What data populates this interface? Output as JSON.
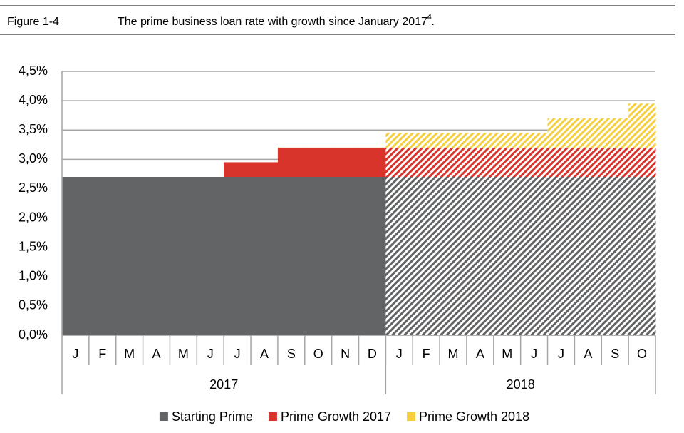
{
  "figure_label": "Figure 1-4",
  "chart_data": {
    "type": "stacked-bar",
    "title": "The prime business loan rate with growth since January 2017",
    "title_superscript": "4",
    "title_end": ".",
    "categories": [
      "J",
      "F",
      "M",
      "A",
      "M",
      "J",
      "J",
      "A",
      "S",
      "O",
      "N",
      "D",
      "J",
      "F",
      "M",
      "A",
      "M",
      "J",
      "J",
      "A",
      "S",
      "O"
    ],
    "groups": [
      {
        "label": "2017",
        "count": 12,
        "hatched": false
      },
      {
        "label": "2018",
        "count": 10,
        "hatched": true
      }
    ],
    "series": [
      {
        "name": "Starting Prime",
        "color": "#636466",
        "values": [
          2.7,
          2.7,
          2.7,
          2.7,
          2.7,
          2.7,
          2.7,
          2.7,
          2.7,
          2.7,
          2.7,
          2.7,
          2.7,
          2.7,
          2.7,
          2.7,
          2.7,
          2.7,
          2.7,
          2.7,
          2.7,
          2.7
        ]
      },
      {
        "name": "Prime Growth 2017",
        "color": "#d9342b",
        "values": [
          0,
          0,
          0,
          0,
          0,
          0,
          0.25,
          0.25,
          0.5,
          0.5,
          0.5,
          0.5,
          0.5,
          0.5,
          0.5,
          0.5,
          0.5,
          0.5,
          0.5,
          0.5,
          0.5,
          0.5
        ]
      },
      {
        "name": "Prime Growth 2018",
        "color": "#f5cf3f",
        "values": [
          0,
          0,
          0,
          0,
          0,
          0,
          0,
          0,
          0,
          0,
          0,
          0,
          0.25,
          0.25,
          0.25,
          0.25,
          0.25,
          0.25,
          0.5,
          0.5,
          0.5,
          0.75
        ]
      }
    ],
    "ylim": [
      0,
      4.5
    ],
    "yticks": [
      {
        "value": 0,
        "label": "0,0%"
      },
      {
        "value": 0.5,
        "label": "0,5%"
      },
      {
        "value": 1,
        "label": "1,0%"
      },
      {
        "value": 1.5,
        "label": "1,5%"
      },
      {
        "value": 2,
        "label": "2,0%"
      },
      {
        "value": 2.5,
        "label": "2,5%"
      },
      {
        "value": 3,
        "label": "3,0%"
      },
      {
        "value": 3.5,
        "label": "3,5%"
      },
      {
        "value": 4,
        "label": "4,0%"
      },
      {
        "value": 4.5,
        "label": "4,5%"
      }
    ],
    "grid": true,
    "legend": "bottom"
  }
}
